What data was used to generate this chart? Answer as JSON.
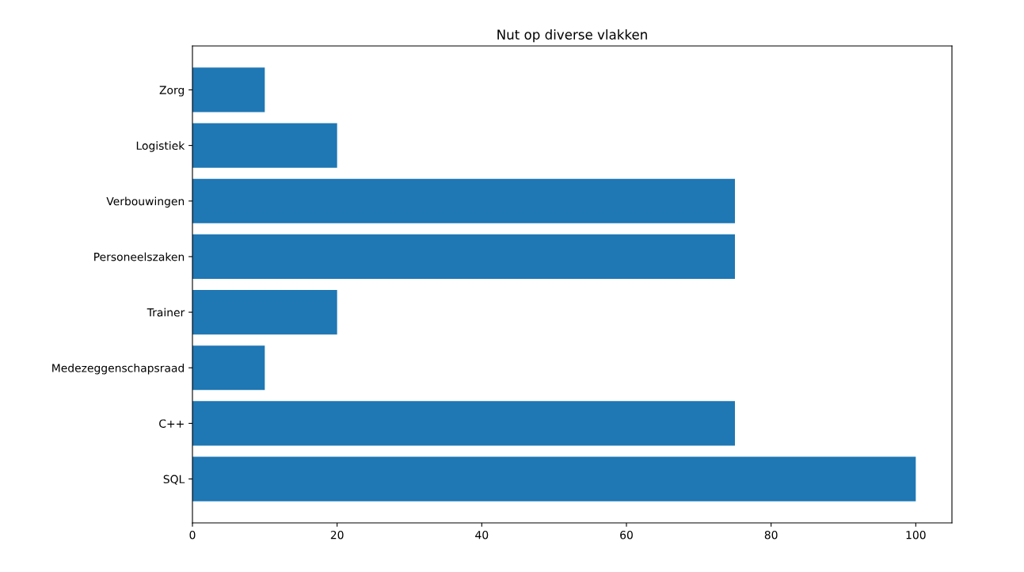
{
  "chart_data": {
    "type": "bar",
    "orientation": "horizontal",
    "title": "Nut op diverse vlakken",
    "categories": [
      "Zorg",
      "Logistiek",
      "Verbouwingen",
      "Personeelszaken",
      "Trainer",
      "Medezeggenschapsraad",
      "C++",
      "SQL"
    ],
    "values": [
      10,
      20,
      75,
      75,
      20,
      10,
      75,
      100
    ],
    "color": "#1f77b4",
    "xlim": [
      0,
      105
    ],
    "xticks": [
      0,
      20,
      40,
      60,
      80,
      100
    ],
    "grid": false,
    "legend": false
  }
}
